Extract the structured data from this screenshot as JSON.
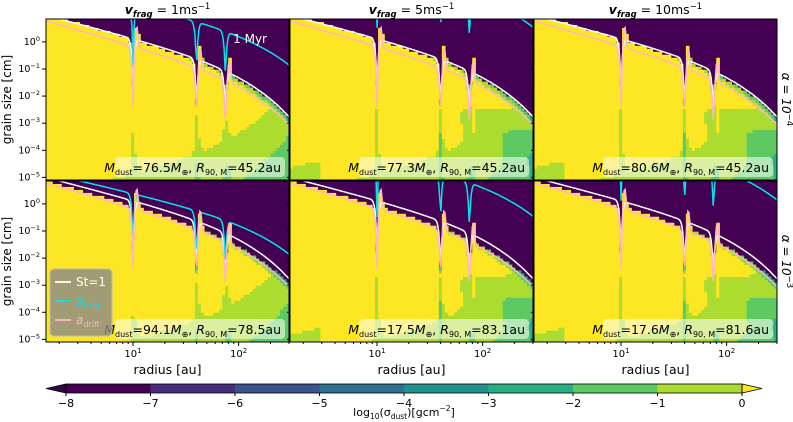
{
  "chart_data": {
    "type": "heatmap",
    "quantity": "log10(σ_dust)",
    "colorbar": {
      "label_pre": "log",
      "label_sub": "10",
      "label_post": "(σ",
      "label_sub2": "dust",
      "label_end": ")[gcm",
      "label_sup": "−2",
      "label_close": "]",
      "ticks": [
        "−8",
        "−7",
        "−6",
        "−5",
        "−4",
        "−3",
        "−2",
        "−1",
        "0"
      ],
      "vmin": -8,
      "vmax": 0,
      "colormap": "viridis",
      "extend": "both"
    },
    "columns": [
      {
        "label": "1ms",
        "v_frag": 1
      },
      {
        "label": "5ms",
        "v_frag": 5
      },
      {
        "label": "10ms",
        "v_frag": 10
      }
    ],
    "column_title_prefix": "v",
    "column_title_sub": "frag",
    "column_title_sup": "−1",
    "rows": [
      {
        "alpha_base": "α = 10",
        "alpha_exp": "−4"
      },
      {
        "alpha_base": "α = 10",
        "alpha_exp": "−3"
      }
    ],
    "time_label": "1 Myr",
    "xlabel": "radius [au]",
    "ylabel": "grain size [cm]",
    "xscale": "log",
    "yscale": "log",
    "xlim": [
      1.5,
      300
    ],
    "ylim": [
      8e-06,
      7
    ],
    "xticks": [
      {
        "base": "10",
        "exp": "1",
        "value": 10
      },
      {
        "base": "10",
        "exp": "2",
        "value": 100
      }
    ],
    "yticks": [
      {
        "base": "10",
        "exp": "0",
        "value": 1
      },
      {
        "base": "10",
        "exp": "−1",
        "value": 0.1
      },
      {
        "base": "10",
        "exp": "−2",
        "value": 0.01
      },
      {
        "base": "10",
        "exp": "−3",
        "value": 0.001
      },
      {
        "base": "10",
        "exp": "−4",
        "value": 0.0001
      },
      {
        "base": "10",
        "exp": "−5",
        "value": 1e-05
      }
    ],
    "gap_radii_au": [
      10,
      40,
      75
    ],
    "legend": [
      {
        "label": "St=1",
        "color": "#ffffff"
      },
      {
        "label_base": "a",
        "label_sub": "frag",
        "color": "#00e5ee"
      },
      {
        "label_base": "a",
        "label_sub": "drift",
        "color": "#ffb6c1"
      }
    ],
    "panels": [
      {
        "row": 0,
        "col": 0,
        "mdust": "76.5",
        "r90": "45.2"
      },
      {
        "row": 0,
        "col": 1,
        "mdust": "77.3",
        "r90": "45.2"
      },
      {
        "row": 0,
        "col": 2,
        "mdust": "80.6",
        "r90": "45.2"
      },
      {
        "row": 1,
        "col": 0,
        "mdust": "94.1",
        "r90": "78.5"
      },
      {
        "row": 1,
        "col": 1,
        "mdust": "17.5",
        "r90": "83.1"
      },
      {
        "row": 1,
        "col": 2,
        "mdust": "17.6",
        "r90": "81.6"
      }
    ],
    "annotation_parts": {
      "m": "M",
      "m_sub": "dust",
      "eq": "=",
      "earth_sub": "⊕",
      "comma": ", ",
      "r": "R",
      "r_sub": "90, M",
      "unit": "au"
    }
  }
}
